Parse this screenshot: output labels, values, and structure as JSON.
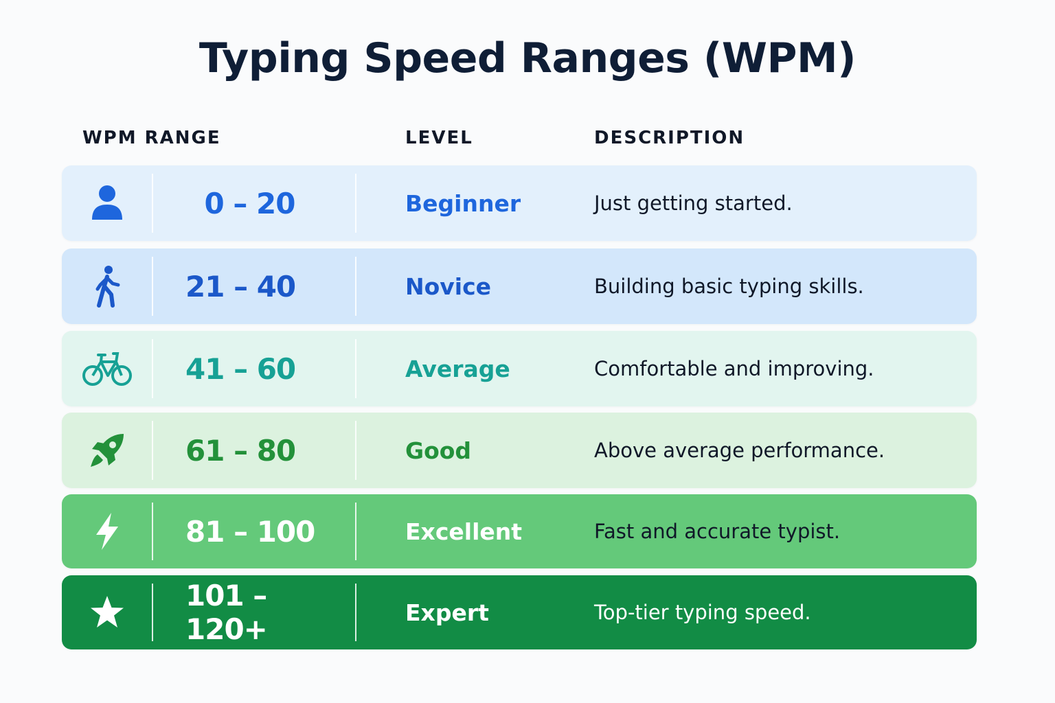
{
  "title": "Typing Speed Ranges (WPM)",
  "headers": {
    "range": "WPM RANGE",
    "level": "LEVEL",
    "description": "DESCRIPTION"
  },
  "rows": [
    {
      "icon": "person-icon",
      "range": "0 – 20",
      "level": "Beginner",
      "description": "Just getting started.",
      "accent": "#1e66dd",
      "background": "#e3f0fc"
    },
    {
      "icon": "walking-icon",
      "range": "21 – 40",
      "level": "Novice",
      "description": "Building basic typing skills.",
      "accent": "#1b58c9",
      "background": "#d3e7fb"
    },
    {
      "icon": "bicycle-icon",
      "range": "41 – 60",
      "level": "Average",
      "description": "Comfortable and improving.",
      "accent": "#17a195",
      "background": "#e2f5ef"
    },
    {
      "icon": "rocket-icon",
      "range": "61 – 80",
      "level": "Good",
      "description": "Above average performance.",
      "accent": "#23913a",
      "background": "#dcf2df"
    },
    {
      "icon": "lightning-icon",
      "range": "81 – 100",
      "level": "Excellent",
      "description": "Fast and accurate typist.",
      "accent": "#ffffff",
      "background": "#64c97a"
    },
    {
      "icon": "star-icon",
      "range": "101 – 120+",
      "level": "Expert",
      "description": "Top-tier typing speed.",
      "accent": "#ffffff",
      "background": "#128c45"
    }
  ]
}
